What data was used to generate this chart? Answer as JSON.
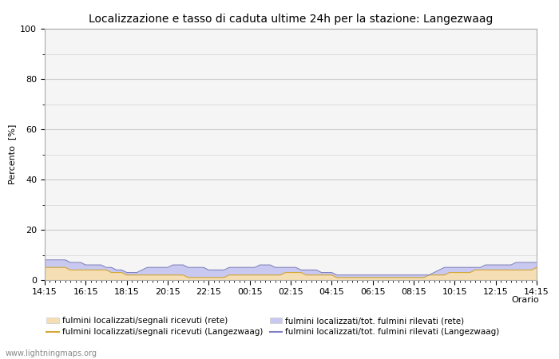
{
  "title": "Localizzazione e tasso di caduta ultime 24h per la stazione: Langezwaag",
  "ylabel": "Percento  [%]",
  "xlabel": "Orario",
  "ylim": [
    0,
    100
  ],
  "yticks": [
    0,
    20,
    40,
    60,
    80,
    100
  ],
  "yticks_minor": [
    10,
    30,
    50,
    70,
    90
  ],
  "x_labels": [
    "14:15",
    "16:15",
    "18:15",
    "20:15",
    "22:15",
    "00:15",
    "02:15",
    "04:15",
    "06:15",
    "08:15",
    "10:15",
    "12:15",
    "14:15"
  ],
  "background_color": "#ffffff",
  "plot_background": "#f5f5f5",
  "grid_color": "#cccccc",
  "watermark": "www.lightningmaps.org",
  "fill_rete_color": "#f5deb3",
  "fill_langez_color": "#c8c8f0",
  "line_rete_color": "#d4a830",
  "line_langez_color": "#8080c0",
  "n_points": 97,
  "rete_fill": [
    5,
    5,
    5,
    5,
    5,
    4,
    4,
    4,
    4,
    4,
    4,
    4,
    4,
    3,
    3,
    3,
    2,
    2,
    2,
    2,
    2,
    2,
    2,
    2,
    2,
    2,
    2,
    2,
    1,
    1,
    1,
    1,
    1,
    1,
    1,
    1,
    2,
    2,
    2,
    2,
    2,
    2,
    2,
    2,
    2,
    2,
    2,
    3,
    3,
    3,
    3,
    2,
    2,
    2,
    2,
    2,
    2,
    1,
    1,
    1,
    1,
    1,
    1,
    1,
    1,
    1,
    1,
    1,
    1,
    1,
    1,
    1,
    1,
    1,
    1,
    2,
    2,
    2,
    2,
    3,
    3,
    3,
    3,
    3,
    4,
    4,
    4,
    4,
    4,
    4,
    4,
    4,
    4,
    4,
    4,
    4,
    5
  ],
  "langez_fill": [
    8,
    8,
    8,
    8,
    8,
    7,
    7,
    7,
    6,
    6,
    6,
    6,
    5,
    5,
    4,
    4,
    3,
    3,
    3,
    4,
    5,
    5,
    5,
    5,
    5,
    6,
    6,
    6,
    5,
    5,
    5,
    5,
    4,
    4,
    4,
    4,
    5,
    5,
    5,
    5,
    5,
    5,
    6,
    6,
    6,
    5,
    5,
    5,
    5,
    5,
    4,
    4,
    4,
    4,
    3,
    3,
    3,
    2,
    2,
    2,
    2,
    2,
    2,
    2,
    2,
    2,
    2,
    2,
    2,
    2,
    2,
    2,
    2,
    2,
    2,
    2,
    3,
    4,
    5,
    5,
    5,
    5,
    5,
    5,
    5,
    5,
    6,
    6,
    6,
    6,
    6,
    6,
    7,
    7,
    7,
    7,
    7
  ],
  "legend_row1": [
    {
      "label": "fulmini localizzati/segnali ricevuti (rete)",
      "type": "fill",
      "color": "#f5deb3"
    },
    {
      "label": "fulmini localizzati/segnali ricevuti (Langezwaag)",
      "type": "line",
      "color": "#d4a830"
    }
  ],
  "legend_row2": [
    {
      "label": "fulmini localizzati/tot. fulmini rilevati (rete)",
      "type": "fill",
      "color": "#c8c8f0"
    },
    {
      "label": "fulmini localizzati/tot. fulmini rilevati (Langezwaag)",
      "type": "line",
      "color": "#8080c0"
    }
  ]
}
